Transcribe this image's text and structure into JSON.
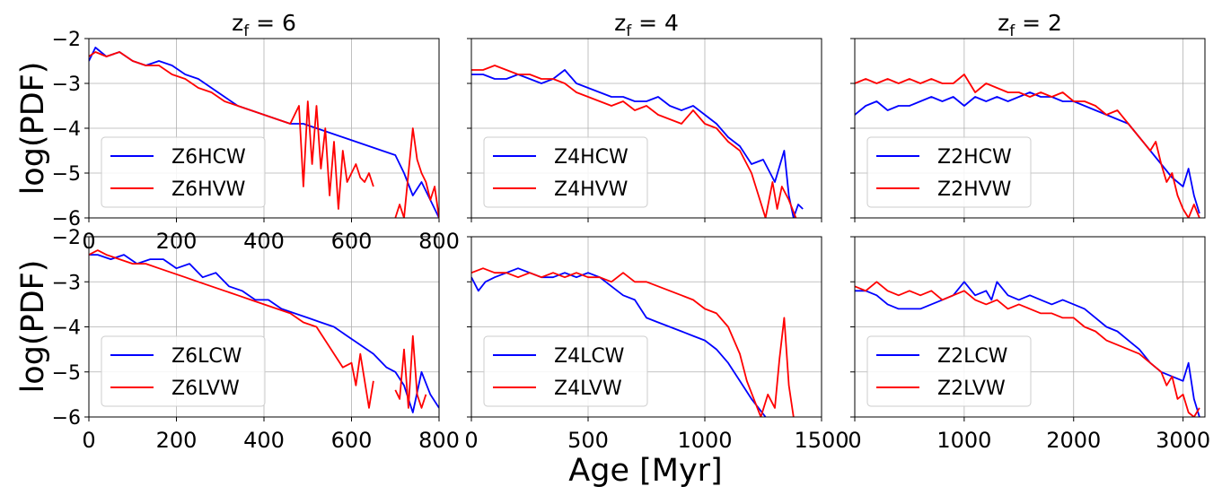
{
  "figure": {
    "xlabel": "Age [Myr]",
    "ylabel": "log(PDF)"
  },
  "chart_data": [
    {
      "type": "line",
      "title_base": "z",
      "title_sub": "f",
      "title_value": "= 6",
      "xlim": [
        0,
        800
      ],
      "ylim": [
        -6,
        -2
      ],
      "xticks": [
        0,
        200,
        400,
        600,
        800
      ],
      "yticks": [
        -6,
        -5,
        -4,
        -3,
        -2
      ],
      "xtick_labels": [
        "0",
        "200",
        "400",
        "600",
        "800"
      ],
      "ytick_labels": [
        "−6",
        "−5",
        "−4",
        "−3",
        "−2"
      ],
      "grid": true,
      "legend": "lower-left",
      "series": [
        {
          "name": "Z6HCW",
          "color": "#0000ff",
          "x": [
            0,
            15,
            40,
            70,
            100,
            130,
            160,
            190,
            220,
            250,
            280,
            310,
            340,
            370,
            400,
            430,
            460,
            490,
            520,
            550,
            580,
            610,
            640,
            670,
            700,
            720,
            740,
            760,
            780,
            800
          ],
          "y": [
            -2.5,
            -2.2,
            -2.4,
            -2.3,
            -2.5,
            -2.6,
            -2.5,
            -2.6,
            -2.8,
            -2.9,
            -3.1,
            -3.3,
            -3.5,
            -3.6,
            -3.7,
            -3.8,
            -3.9,
            -3.9,
            -4.0,
            -4.1,
            -4.2,
            -4.3,
            -4.4,
            -4.5,
            -4.6,
            -5.0,
            -5.5,
            -5.2,
            -5.6,
            -6.0
          ]
        },
        {
          "name": "Z6HVW",
          "color": "#ff0000",
          "x": [
            0,
            15,
            40,
            70,
            100,
            130,
            160,
            190,
            220,
            250,
            280,
            310,
            340,
            370,
            400,
            430,
            460,
            480,
            490,
            500,
            510,
            520,
            530,
            540,
            550,
            560,
            570,
            580,
            590,
            600,
            610,
            620,
            630,
            640,
            650,
            null,
            700,
            710,
            720,
            730,
            740,
            750,
            760,
            770,
            780,
            790,
            800
          ],
          "y": [
            -2.4,
            -2.3,
            -2.4,
            -2.3,
            -2.5,
            -2.6,
            -2.6,
            -2.8,
            -2.9,
            -3.1,
            -3.2,
            -3.4,
            -3.5,
            -3.6,
            -3.7,
            -3.8,
            -3.9,
            -3.5,
            -5.3,
            -3.4,
            -4.8,
            -3.5,
            -4.9,
            -4.0,
            -5.5,
            -4.3,
            -5.8,
            -4.5,
            -5.2,
            -5.0,
            -4.8,
            -5.1,
            -5.2,
            -5.0,
            -5.3,
            null,
            -6.0,
            -5.7,
            -6.0,
            -5.0,
            -4.0,
            -4.7,
            -5.0,
            -5.2,
            -5.6,
            -5.3,
            -6.0
          ]
        }
      ]
    },
    {
      "type": "line",
      "title_base": "z",
      "title_sub": "f",
      "title_value": "= 4",
      "xlim": [
        0,
        1500
      ],
      "ylim": [
        -6,
        -2
      ],
      "xticks": [
        0,
        500,
        1000,
        1500
      ],
      "yticks": [
        -6,
        -5,
        -4,
        -3,
        -2
      ],
      "xtick_labels": [],
      "ytick_labels": [],
      "grid": true,
      "legend": "lower-left",
      "series": [
        {
          "name": "Z4HCW",
          "color": "#0000ff",
          "x": [
            0,
            50,
            100,
            150,
            200,
            250,
            300,
            350,
            400,
            450,
            500,
            550,
            600,
            650,
            700,
            750,
            800,
            850,
            900,
            950,
            1000,
            1050,
            1100,
            1150,
            1200,
            1250,
            1300,
            1340,
            1360,
            1380,
            1400,
            1420
          ],
          "y": [
            -2.8,
            -2.8,
            -2.9,
            -2.9,
            -2.8,
            -2.9,
            -3.0,
            -2.9,
            -2.7,
            -3.0,
            -3.1,
            -3.2,
            -3.3,
            -3.3,
            -3.4,
            -3.4,
            -3.3,
            -3.5,
            -3.6,
            -3.5,
            -3.7,
            -3.9,
            -4.2,
            -4.4,
            -4.8,
            -4.7,
            -5.2,
            -4.5,
            -5.5,
            -6.0,
            -5.7,
            -5.8
          ]
        },
        {
          "name": "Z4HVW",
          "color": "#ff0000",
          "x": [
            0,
            50,
            100,
            150,
            200,
            250,
            300,
            350,
            400,
            450,
            500,
            550,
            600,
            650,
            700,
            750,
            800,
            850,
            900,
            950,
            1000,
            1050,
            1100,
            1150,
            1200,
            1230,
            1260,
            1290,
            1310,
            1330,
            1360,
            1390
          ],
          "y": [
            -2.7,
            -2.7,
            -2.6,
            -2.7,
            -2.8,
            -2.8,
            -2.9,
            -2.9,
            -3.0,
            -3.2,
            -3.3,
            -3.4,
            -3.5,
            -3.4,
            -3.6,
            -3.5,
            -3.7,
            -3.8,
            -3.9,
            -3.6,
            -3.9,
            -4.0,
            -4.3,
            -4.5,
            -5.0,
            -5.5,
            -6.0,
            -5.2,
            -5.8,
            -5.3,
            -5.6,
            -6.0
          ]
        }
      ]
    },
    {
      "type": "line",
      "title_base": "z",
      "title_sub": "f",
      "title_value": "= 2",
      "xlim": [
        0,
        3200
      ],
      "ylim": [
        -6,
        -2
      ],
      "xticks": [
        0,
        1000,
        2000,
        3000
      ],
      "yticks": [
        -6,
        -5,
        -4,
        -3,
        -2
      ],
      "xtick_labels": [],
      "ytick_labels": [],
      "grid": true,
      "legend": "lower-left",
      "series": [
        {
          "name": "Z2HCW",
          "color": "#0000ff",
          "x": [
            0,
            100,
            200,
            300,
            400,
            500,
            600,
            700,
            800,
            900,
            1000,
            1100,
            1200,
            1300,
            1400,
            1500,
            1600,
            1700,
            1800,
            1900,
            2000,
            2100,
            2200,
            2300,
            2400,
            2500,
            2600,
            2700,
            2800,
            2900,
            3000,
            3050,
            3100,
            3150
          ],
          "y": [
            -3.7,
            -3.5,
            -3.4,
            -3.6,
            -3.5,
            -3.5,
            -3.4,
            -3.3,
            -3.4,
            -3.3,
            -3.5,
            -3.3,
            -3.4,
            -3.3,
            -3.4,
            -3.3,
            -3.2,
            -3.3,
            -3.3,
            -3.4,
            -3.4,
            -3.5,
            -3.6,
            -3.7,
            -3.8,
            -3.9,
            -4.2,
            -4.5,
            -4.8,
            -5.1,
            -5.3,
            -4.9,
            -5.5,
            -5.9
          ]
        },
        {
          "name": "Z2HVW",
          "color": "#ff0000",
          "x": [
            0,
            100,
            200,
            300,
            400,
            500,
            600,
            700,
            800,
            900,
            1000,
            1100,
            1200,
            1300,
            1400,
            1500,
            1600,
            1700,
            1800,
            1900,
            2000,
            2100,
            2200,
            2300,
            2400,
            2500,
            2600,
            2700,
            2750,
            2800,
            2850,
            2900,
            2950,
            3000,
            3050,
            3100,
            3150
          ],
          "y": [
            -3.0,
            -2.9,
            -3.0,
            -2.9,
            -3.0,
            -2.9,
            -3.0,
            -2.9,
            -3.0,
            -3.0,
            -2.8,
            -3.2,
            -3.0,
            -3.1,
            -3.2,
            -3.2,
            -3.3,
            -3.2,
            -3.3,
            -3.2,
            -3.4,
            -3.4,
            -3.5,
            -3.7,
            -3.6,
            -3.9,
            -4.2,
            -4.5,
            -4.3,
            -4.8,
            -5.2,
            -5.0,
            -5.5,
            -5.8,
            -6.0,
            -5.7,
            -6.0
          ]
        }
      ]
    },
    {
      "type": "line",
      "xlim": [
        0,
        800
      ],
      "ylim": [
        -6,
        -2
      ],
      "xticks": [
        0,
        200,
        400,
        600,
        800
      ],
      "yticks": [
        -6,
        -5,
        -4,
        -3,
        -2
      ],
      "xtick_labels": [
        "0",
        "200",
        "400",
        "600",
        "800"
      ],
      "ytick_labels": [
        "−6",
        "−5",
        "−4",
        "−3",
        "−2"
      ],
      "grid": true,
      "legend": "lower-left",
      "series": [
        {
          "name": "Z6LCW",
          "color": "#0000ff",
          "x": [
            0,
            20,
            50,
            80,
            110,
            140,
            170,
            200,
            230,
            260,
            290,
            320,
            350,
            380,
            410,
            440,
            470,
            500,
            530,
            560,
            590,
            620,
            650,
            680,
            700,
            720,
            740,
            760,
            780,
            800
          ],
          "y": [
            -2.4,
            -2.4,
            -2.5,
            -2.4,
            -2.6,
            -2.5,
            -2.5,
            -2.7,
            -2.6,
            -2.9,
            -2.8,
            -3.1,
            -3.2,
            -3.4,
            -3.4,
            -3.6,
            -3.7,
            -3.8,
            -3.9,
            -4.0,
            -4.2,
            -4.4,
            -4.6,
            -4.9,
            -5.0,
            -5.3,
            -5.9,
            -5.0,
            -5.5,
            -5.8
          ]
        },
        {
          "name": "Z6LVW",
          "color": "#ff0000",
          "x": [
            0,
            20,
            40,
            70,
            100,
            130,
            160,
            190,
            220,
            250,
            280,
            310,
            340,
            370,
            400,
            430,
            460,
            490,
            520,
            540,
            560,
            580,
            600,
            610,
            620,
            640,
            650,
            null,
            700,
            710,
            720,
            730,
            740,
            750,
            760,
            770
          ],
          "y": [
            -2.4,
            -2.3,
            -2.4,
            -2.5,
            -2.6,
            -2.6,
            -2.7,
            -2.8,
            -2.9,
            -3.0,
            -3.1,
            -3.2,
            -3.3,
            -3.4,
            -3.5,
            -3.6,
            -3.7,
            -3.9,
            -4.0,
            -4.3,
            -4.6,
            -4.9,
            -4.8,
            -5.3,
            -4.6,
            -5.8,
            -5.2,
            null,
            -5.4,
            -5.6,
            -4.5,
            -5.8,
            -4.2,
            -5.5,
            -5.8,
            -5.5
          ]
        }
      ]
    },
    {
      "type": "line",
      "xlim": [
        0,
        1500
      ],
      "ylim": [
        -6,
        -2
      ],
      "xticks": [
        0,
        500,
        1000,
        1500
      ],
      "yticks": [
        -6,
        -5,
        -4,
        -3,
        -2
      ],
      "xtick_labels": [
        "0",
        "500",
        "1000",
        "1500"
      ],
      "ytick_labels": [],
      "grid": true,
      "legend": "lower-left",
      "series": [
        {
          "name": "Z4LCW",
          "color": "#0000ff",
          "x": [
            0,
            30,
            60,
            100,
            150,
            200,
            250,
            300,
            350,
            400,
            450,
            500,
            550,
            600,
            650,
            700,
            750,
            800,
            850,
            900,
            950,
            1000,
            1050,
            1100,
            1150,
            1200,
            1230,
            1260
          ],
          "y": [
            -2.9,
            -3.2,
            -3.0,
            -2.9,
            -2.8,
            -2.7,
            -2.8,
            -2.9,
            -2.9,
            -2.8,
            -2.9,
            -2.8,
            -2.9,
            -3.1,
            -3.3,
            -3.4,
            -3.8,
            -3.9,
            -4.0,
            -4.1,
            -4.2,
            -4.3,
            -4.5,
            -4.8,
            -5.2,
            -5.6,
            -5.8,
            -6.0
          ]
        },
        {
          "name": "Z4LVW",
          "color": "#ff0000",
          "x": [
            0,
            50,
            100,
            150,
            200,
            250,
            300,
            350,
            400,
            450,
            500,
            550,
            600,
            650,
            700,
            750,
            800,
            850,
            900,
            950,
            1000,
            1050,
            1100,
            1150,
            1180,
            1210,
            1240,
            1270,
            1300,
            1320,
            1340,
            1360,
            1380
          ],
          "y": [
            -2.8,
            -2.7,
            -2.8,
            -2.8,
            -2.9,
            -2.8,
            -2.9,
            -2.8,
            -2.9,
            -2.8,
            -2.9,
            -2.9,
            -3.0,
            -2.8,
            -3.0,
            -3.0,
            -3.1,
            -3.2,
            -3.3,
            -3.4,
            -3.6,
            -3.7,
            -4.0,
            -4.6,
            -5.2,
            -5.6,
            -6.0,
            -5.5,
            -5.8,
            -4.7,
            -3.8,
            -5.3,
            -6.0
          ]
        }
      ]
    },
    {
      "type": "line",
      "xlim": [
        0,
        3200
      ],
      "ylim": [
        -6,
        -2
      ],
      "xticks": [
        0,
        1000,
        2000,
        3000
      ],
      "yticks": [
        -6,
        -5,
        -4,
        -3,
        -2
      ],
      "xtick_labels": [
        "0",
        "1000",
        "2000",
        "3000"
      ],
      "ytick_labels": [],
      "grid": true,
      "legend": "lower-left",
      "series": [
        {
          "name": "Z2LCW",
          "color": "#0000ff",
          "x": [
            0,
            100,
            200,
            300,
            400,
            500,
            600,
            700,
            800,
            900,
            1000,
            1100,
            1200,
            1250,
            1300,
            1400,
            1500,
            1600,
            1700,
            1800,
            1900,
            2000,
            2100,
            2200,
            2300,
            2400,
            2500,
            2600,
            2700,
            2800,
            2900,
            3000,
            3050,
            3100,
            3150
          ],
          "y": [
            -3.2,
            -3.2,
            -3.3,
            -3.5,
            -3.6,
            -3.6,
            -3.6,
            -3.5,
            -3.4,
            -3.3,
            -3.0,
            -3.3,
            -3.2,
            -3.4,
            -3.0,
            -3.3,
            -3.4,
            -3.3,
            -3.4,
            -3.5,
            -3.4,
            -3.5,
            -3.6,
            -3.8,
            -4.0,
            -4.1,
            -4.3,
            -4.5,
            -4.8,
            -5.0,
            -5.1,
            -5.2,
            -4.8,
            -5.6,
            -6.0
          ]
        },
        {
          "name": "Z2LVW",
          "color": "#ff0000",
          "x": [
            0,
            100,
            200,
            300,
            400,
            500,
            600,
            700,
            800,
            900,
            1000,
            1100,
            1200,
            1300,
            1400,
            1500,
            1600,
            1700,
            1800,
            1900,
            2000,
            2100,
            2200,
            2300,
            2400,
            2500,
            2600,
            2700,
            2800,
            2850,
            2900,
            2950,
            3000,
            3050,
            3100,
            3150
          ],
          "y": [
            -3.1,
            -3.2,
            -3.0,
            -3.2,
            -3.3,
            -3.2,
            -3.3,
            -3.2,
            -3.4,
            -3.3,
            -3.2,
            -3.4,
            -3.5,
            -3.4,
            -3.6,
            -3.5,
            -3.6,
            -3.7,
            -3.7,
            -3.8,
            -3.8,
            -4.0,
            -4.1,
            -4.3,
            -4.4,
            -4.5,
            -4.6,
            -4.8,
            -5.0,
            -5.3,
            -5.1,
            -5.6,
            -5.5,
            -5.9,
            -6.0,
            -5.8
          ]
        }
      ]
    }
  ]
}
